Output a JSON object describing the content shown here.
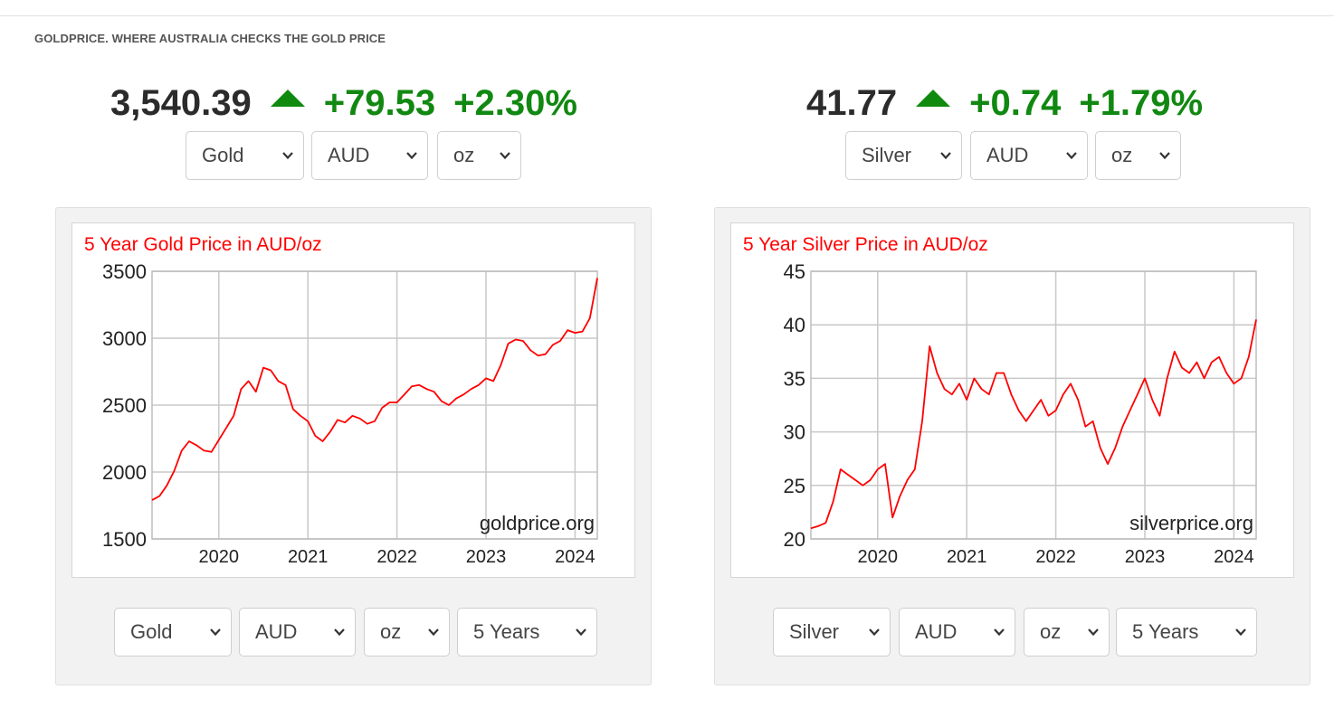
{
  "header": {
    "tagline": "GOLDPRICE. WHERE AUSTRALIA CHECKS THE GOLD PRICE"
  },
  "gold": {
    "price": "3,540.39",
    "change": "+79.53",
    "percent": "+2.30%",
    "selectors": {
      "metal": "Gold",
      "currency": "AUD",
      "unit": "oz"
    },
    "chart_selectors": {
      "metal": "Gold",
      "currency": "AUD",
      "unit": "oz",
      "period": "5 Years"
    }
  },
  "silver": {
    "price": "41.77",
    "change": "+0.74",
    "percent": "+1.79%",
    "selectors": {
      "metal": "Silver",
      "currency": "AUD",
      "unit": "oz"
    },
    "chart_selectors": {
      "metal": "Silver",
      "currency": "AUD",
      "unit": "oz",
      "period": "5 Years"
    }
  },
  "colors": {
    "up": "#118811",
    "line": "#ff0000",
    "title": "#ff0000",
    "grid": "#c8c8c8"
  },
  "icons": {
    "trend": "up-triangle-icon",
    "dropdown": "chevron-down-icon"
  },
  "chart_data": [
    {
      "type": "line",
      "title": "5 Year Gold Price in AUD/oz",
      "watermark": "goldprice.org",
      "x_ticks": [
        "2020",
        "2021",
        "2022",
        "2023",
        "2024"
      ],
      "y_ticks": [
        1500,
        2000,
        2500,
        3000,
        3500
      ],
      "xlim": [
        "2019-04",
        "2024-04"
      ],
      "ylim": [
        1500,
        3500
      ],
      "grid": true,
      "series": [
        {
          "x": [
            "2019-04",
            "2019-05",
            "2019-06",
            "2019-07",
            "2019-08",
            "2019-09",
            "2019-10",
            "2019-11",
            "2019-12",
            "2020-01",
            "2020-02",
            "2020-03",
            "2020-04",
            "2020-05",
            "2020-06",
            "2020-07",
            "2020-08",
            "2020-09",
            "2020-10",
            "2020-11",
            "2020-12",
            "2021-01",
            "2021-02",
            "2021-03",
            "2021-04",
            "2021-05",
            "2021-06",
            "2021-07",
            "2021-08",
            "2021-09",
            "2021-10",
            "2021-11",
            "2021-12",
            "2022-01",
            "2022-02",
            "2022-03",
            "2022-04",
            "2022-05",
            "2022-06",
            "2022-07",
            "2022-08",
            "2022-09",
            "2022-10",
            "2022-11",
            "2022-12",
            "2023-01",
            "2023-02",
            "2023-03",
            "2023-04",
            "2023-05",
            "2023-06",
            "2023-07",
            "2023-08",
            "2023-09",
            "2023-10",
            "2023-11",
            "2023-12",
            "2024-01",
            "2024-02",
            "2024-03",
            "2024-04"
          ],
          "values": [
            1790,
            1820,
            1900,
            2010,
            2160,
            2230,
            2200,
            2160,
            2150,
            2240,
            2330,
            2420,
            2620,
            2680,
            2600,
            2780,
            2760,
            2680,
            2650,
            2470,
            2420,
            2380,
            2270,
            2230,
            2300,
            2390,
            2370,
            2420,
            2400,
            2360,
            2380,
            2480,
            2520,
            2520,
            2580,
            2640,
            2650,
            2620,
            2600,
            2530,
            2500,
            2550,
            2580,
            2620,
            2650,
            2700,
            2680,
            2800,
            2960,
            2990,
            2980,
            2910,
            2870,
            2880,
            2950,
            2980,
            3060,
            3040,
            3050,
            3150,
            3450
          ]
        }
      ]
    },
    {
      "type": "line",
      "title": "5 Year Silver Price in AUD/oz",
      "watermark": "silverprice.org",
      "x_ticks": [
        "2020",
        "2021",
        "2022",
        "2023",
        "2024"
      ],
      "y_ticks": [
        20,
        25,
        30,
        35,
        40,
        45
      ],
      "xlim": [
        "2019-04",
        "2024-04"
      ],
      "ylim": [
        20,
        45
      ],
      "grid": true,
      "series": [
        {
          "x": [
            "2019-04",
            "2019-05",
            "2019-06",
            "2019-07",
            "2019-08",
            "2019-09",
            "2019-10",
            "2019-11",
            "2019-12",
            "2020-01",
            "2020-02",
            "2020-03",
            "2020-04",
            "2020-05",
            "2020-06",
            "2020-07",
            "2020-08",
            "2020-09",
            "2020-10",
            "2020-11",
            "2020-12",
            "2021-01",
            "2021-02",
            "2021-03",
            "2021-04",
            "2021-05",
            "2021-06",
            "2021-07",
            "2021-08",
            "2021-09",
            "2021-10",
            "2021-11",
            "2021-12",
            "2022-01",
            "2022-02",
            "2022-03",
            "2022-04",
            "2022-05",
            "2022-06",
            "2022-07",
            "2022-08",
            "2022-09",
            "2022-10",
            "2022-11",
            "2022-12",
            "2023-01",
            "2023-02",
            "2023-03",
            "2023-04",
            "2023-05",
            "2023-06",
            "2023-07",
            "2023-08",
            "2023-09",
            "2023-10",
            "2023-11",
            "2023-12",
            "2024-01",
            "2024-02",
            "2024-03",
            "2024-04"
          ],
          "values": [
            21.0,
            21.2,
            21.5,
            23.5,
            26.5,
            26.0,
            25.5,
            25.0,
            25.5,
            26.5,
            27.0,
            22.0,
            24.0,
            25.5,
            26.5,
            31.0,
            38.0,
            35.5,
            34.0,
            33.5,
            34.5,
            33.0,
            35.0,
            34.0,
            33.5,
            35.5,
            35.5,
            33.5,
            32.0,
            31.0,
            32.0,
            33.0,
            31.5,
            32.0,
            33.5,
            34.5,
            33.0,
            30.5,
            31.0,
            28.5,
            27.0,
            28.5,
            30.5,
            32.0,
            33.5,
            35.0,
            33.0,
            31.5,
            35.0,
            37.5,
            36.0,
            35.5,
            36.5,
            35.0,
            36.5,
            37.0,
            35.5,
            34.5,
            35.0,
            37.0,
            40.5
          ]
        }
      ]
    }
  ]
}
